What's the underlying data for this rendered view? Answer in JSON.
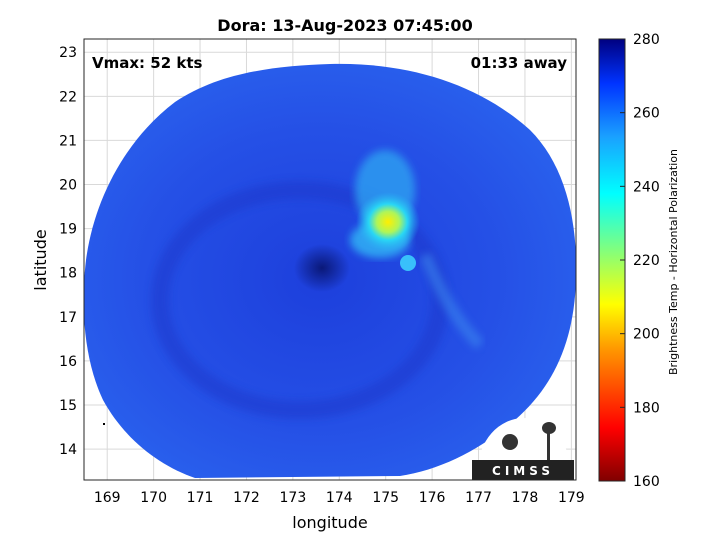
{
  "title": "Dora: 13-Aug-2023 07:45:00",
  "vmax_label": "Vmax: 52 kts",
  "time_away_label": "01:33 away",
  "xlabel": "longitude",
  "ylabel": "latitude",
  "colorbar_label": "Brightness Temp - Horizontal Polarization",
  "logo_text": "CIMSS",
  "x_ticks": [
    "169",
    "170",
    "171",
    "172",
    "173",
    "174",
    "175",
    "176",
    "177",
    "178",
    "179"
  ],
  "y_ticks": [
    "23",
    "22",
    "21",
    "20",
    "19",
    "18",
    "17",
    "16",
    "15",
    "14"
  ],
  "colorbar_ticks": [
    "280",
    "260",
    "240",
    "220",
    "200",
    "180",
    "160"
  ],
  "map_data": {
    "lon_range": [
      168.5,
      179.1
    ],
    "lat_range": [
      13.3,
      23.3
    ],
    "colorbar_range": [
      160,
      280
    ],
    "swath_center": {
      "lon": 174.2,
      "lat": 18.3
    },
    "storm_features": [
      {
        "name": "cold-core",
        "lon": 175.0,
        "lat": 19.1,
        "tb": 205
      },
      {
        "name": "eye",
        "lon": 173.7,
        "lat": 18.1,
        "tb": 270
      }
    ],
    "colors": {
      "background": "#2347e0",
      "warm": "#0c1f9a",
      "cool": "#20d0ff",
      "cold": "#ffee00"
    }
  }
}
